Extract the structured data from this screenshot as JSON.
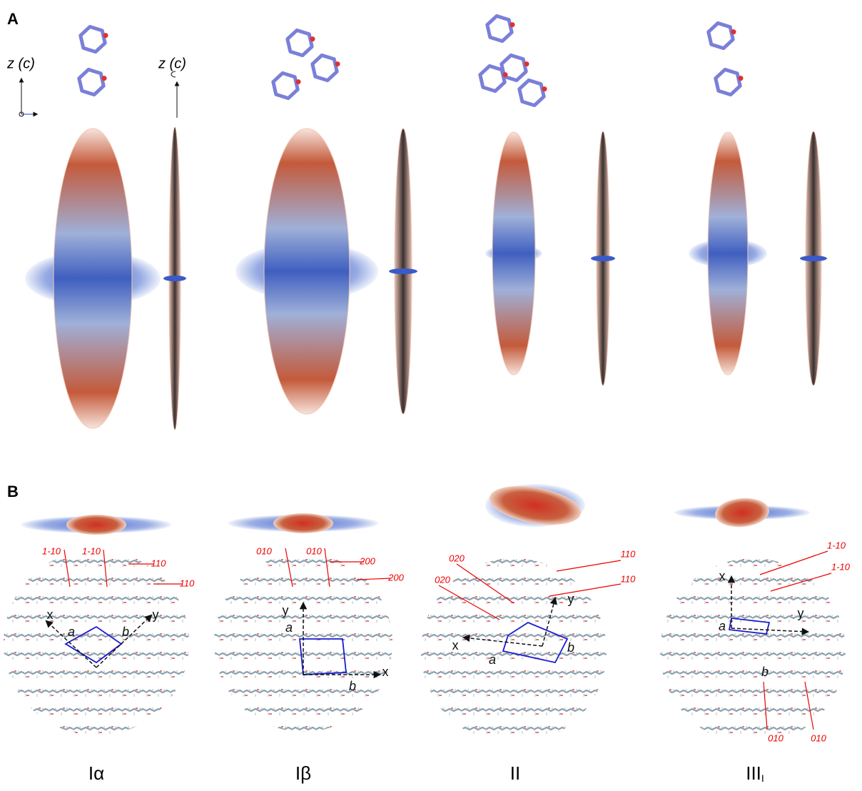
{
  "panel_a": {
    "label": "A",
    "axis_labels": [
      "z (c)",
      "z (c)"
    ]
  },
  "panel_b": {
    "label": "B",
    "columns": [
      {
        "name": "Iα",
        "planes": [
          "1-10",
          "1-10",
          "110",
          "110"
        ],
        "axes": [
          "x",
          "y",
          "a",
          "b"
        ]
      },
      {
        "name": "Iβ",
        "planes": [
          "010",
          "010",
          "200",
          "200"
        ],
        "axes": [
          "y",
          "x",
          "a",
          "b"
        ]
      },
      {
        "name": "II",
        "planes": [
          "020",
          "020",
          "110",
          "110"
        ],
        "axes": [
          "y",
          "x",
          "a",
          "b"
        ]
      },
      {
        "name": "III",
        "name_sub": "I",
        "planes": [
          "1-10",
          "1-10",
          "010",
          "010"
        ],
        "axes": [
          "x",
          "y",
          "a",
          "b"
        ]
      }
    ]
  }
}
